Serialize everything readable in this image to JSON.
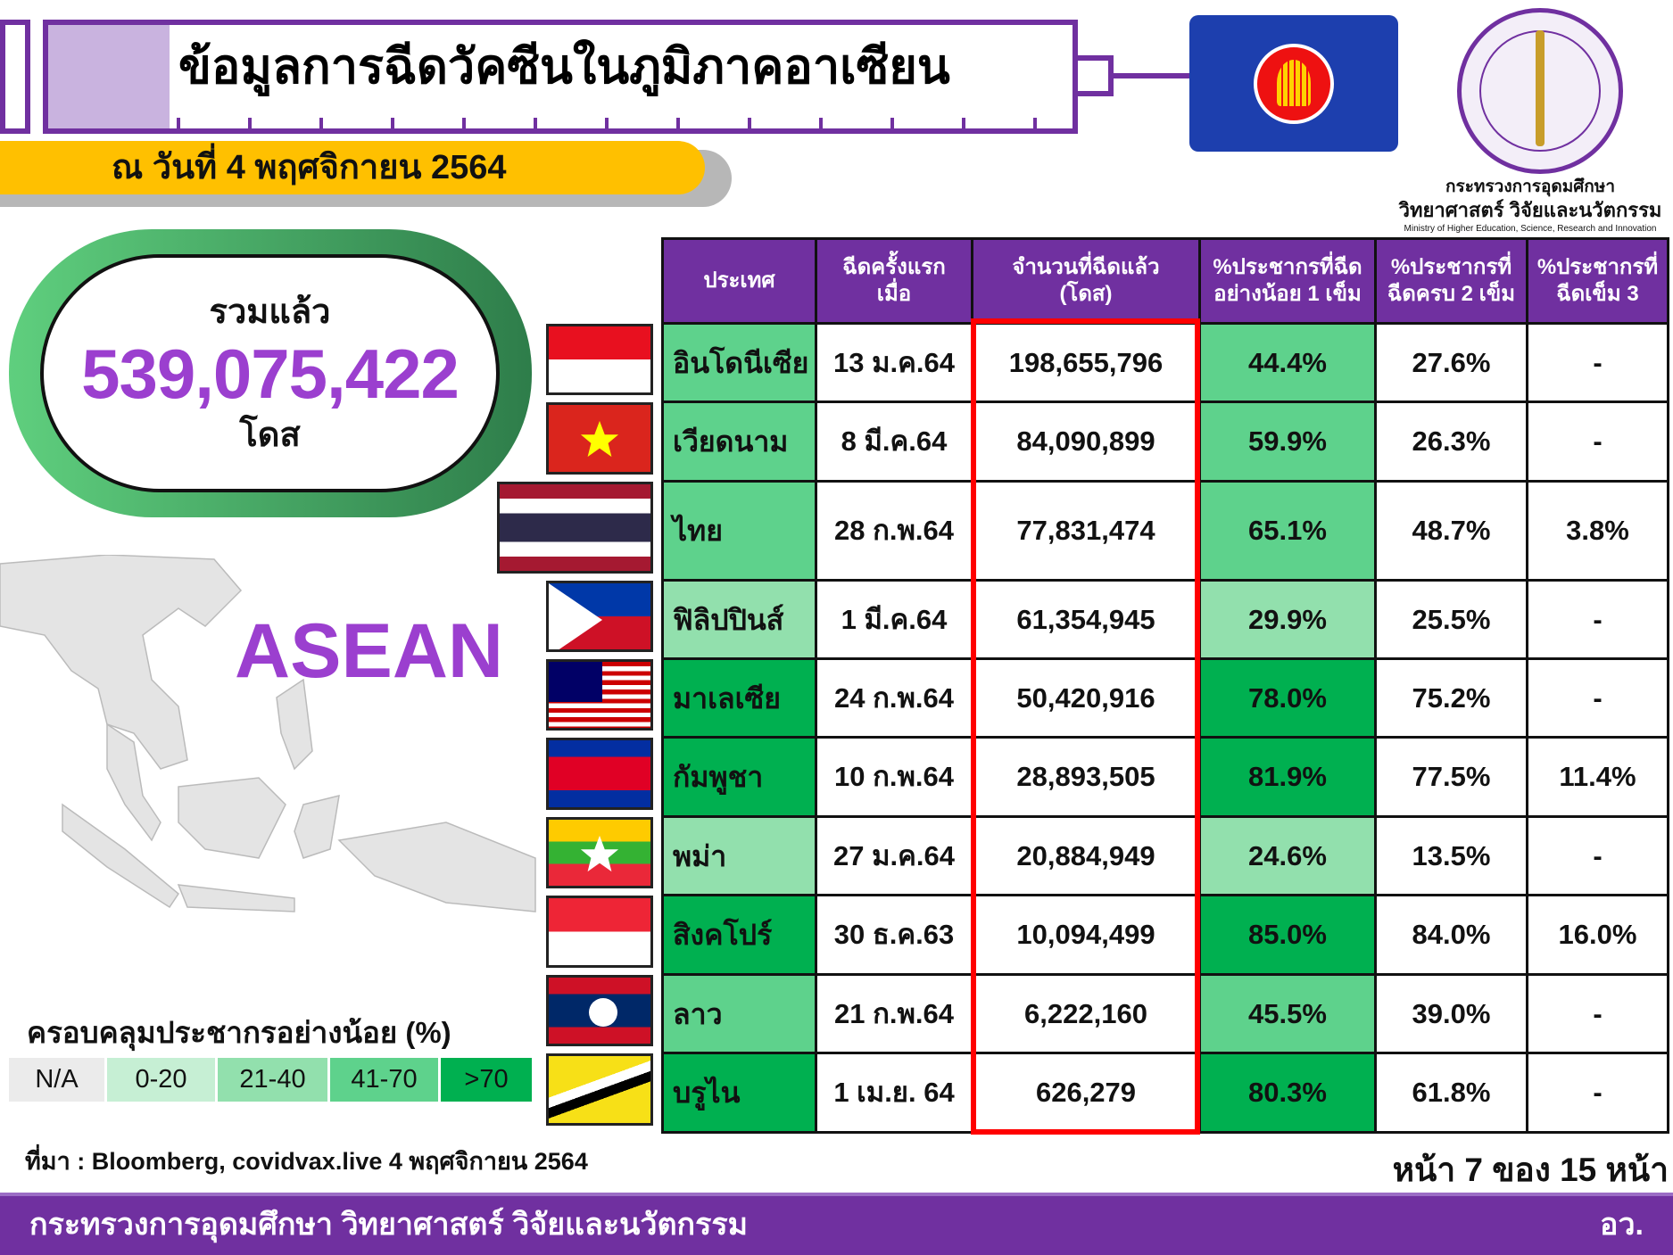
{
  "header": {
    "title": "ข้อมูลการฉีดวัคซีนในภูมิภาคอาเซียน",
    "date": "ณ วันที่ 4 พฤศจิกายน 2564"
  },
  "logo": {
    "name_th_1": "กระทรวงการอุดมศึกษา",
    "name_th_2": "วิทยาศาสตร์ วิจัยและนวัตกรรม",
    "name_en": "Ministry of Higher Education, Science, Research and Innovation"
  },
  "total": {
    "label": "รวมแล้ว",
    "value": "539,075,422",
    "unit": "โดส"
  },
  "map": {
    "label": "ASEAN"
  },
  "legend": {
    "title": "ครอบคลุมประชากรอย่างน้อย (%)",
    "items": [
      {
        "label": "N/A",
        "color": "#ebebeb"
      },
      {
        "label": "0-20",
        "color": "#c6efd4"
      },
      {
        "label": "21-40",
        "color": "#92e0ad"
      },
      {
        "label": "41-70",
        "color": "#5ed28c"
      },
      {
        "label": ">70",
        "color": "#00b050"
      }
    ]
  },
  "table": {
    "headers": [
      "ประเทศ",
      "ฉีดครั้งแรก\nเมื่อ",
      "จำนวนที่ฉีดแล้ว\n(โดส)",
      "%ประชากรที่ฉีด\nอย่างน้อย 1 เข็ม",
      "%ประชากรที่\nฉีดครบ 2 เข็ม",
      "%ประชากรที่\nฉีดเข็ม 3"
    ],
    "rows": [
      {
        "flag": "indonesia",
        "country": "อินโดนีเซีย",
        "first": "13 ม.ค.64",
        "doses": "198,655,796",
        "one": "44.4%",
        "two": "27.6%",
        "three": "-",
        "tier": 3
      },
      {
        "flag": "vietnam",
        "country": "เวียดนาม",
        "first": "8 มี.ค.64",
        "doses": "84,090,899",
        "one": "59.9%",
        "two": "26.3%",
        "three": "-",
        "tier": 3
      },
      {
        "flag": "thailand",
        "country": "ไทย",
        "first": "28 ก.พ.64",
        "doses": "77,831,474",
        "one": "65.1%",
        "two": "48.7%",
        "three": "3.8%",
        "tier": 3
      },
      {
        "flag": "philippines",
        "country": "ฟิลิปปินส์",
        "first": "1 มี.ค.64",
        "doses": "61,354,945",
        "one": "29.9%",
        "two": "25.5%",
        "three": "-",
        "tier": 2
      },
      {
        "flag": "malaysia",
        "country": "มาเลเซีย",
        "first": "24 ก.พ.64",
        "doses": "50,420,916",
        "one": "78.0%",
        "two": "75.2%",
        "three": "-",
        "tier": 4
      },
      {
        "flag": "cambodia",
        "country": "กัมพูชา",
        "first": "10 ก.พ.64",
        "doses": "28,893,505",
        "one": "81.9%",
        "two": "77.5%",
        "three": "11.4%",
        "tier": 4
      },
      {
        "flag": "myanmar",
        "country": "พม่า",
        "first": "27 ม.ค.64",
        "doses": "20,884,949",
        "one": "24.6%",
        "two": "13.5%",
        "three": "-",
        "tier": 2
      },
      {
        "flag": "singapore",
        "country": "สิงคโปร์",
        "first": "30 ธ.ค.63",
        "doses": "10,094,499",
        "one": "85.0%",
        "two": "84.0%",
        "three": "16.0%",
        "tier": 4
      },
      {
        "flag": "laos",
        "country": "ลาว",
        "first": "21 ก.พ.64",
        "doses": "6,222,160",
        "one": "45.5%",
        "two": "39.0%",
        "three": "-",
        "tier": 3
      },
      {
        "flag": "brunei",
        "country": "บรูไน",
        "first": "1 เม.ย. 64",
        "doses": "626,279",
        "one": "80.3%",
        "two": "61.8%",
        "three": "-",
        "tier": 4
      }
    ]
  },
  "source": "ที่มา : Bloomberg, covidvax.live 4 พฤศจิกายน 2564",
  "page": "หน้า 7 ของ 15 หน้า",
  "footer": {
    "left": "กระทรวงการอุดมศึกษา วิทยาศาสตร์ วิจัยและนวัตกรรม",
    "right": "อว."
  },
  "colors": {
    "purple": "#7030a0",
    "highlight": "#ff0000",
    "date_bar": "#ffc000"
  }
}
